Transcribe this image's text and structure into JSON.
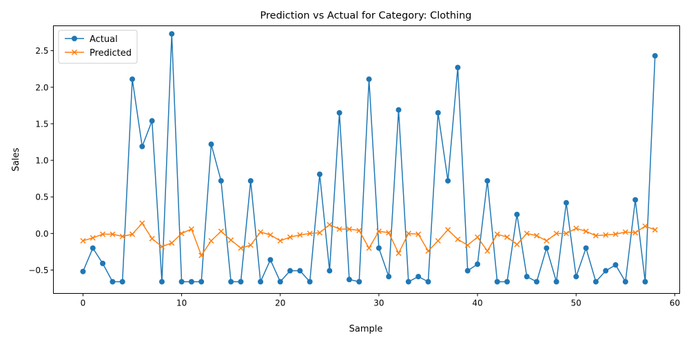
{
  "chart_data": {
    "type": "line",
    "title": "Prediction vs Actual for Category: Clothing",
    "xlabel": "Sample",
    "ylabel": "Sales",
    "xlim": [
      -3,
      60.5
    ],
    "ylim": [
      -0.82,
      2.84
    ],
    "xticks": [
      0,
      10,
      20,
      30,
      40,
      50,
      60
    ],
    "yticks": [
      -0.5,
      0.0,
      0.5,
      1.0,
      1.5,
      2.0,
      2.5
    ],
    "xtick_labels": [
      "0",
      "10",
      "20",
      "30",
      "40",
      "50",
      "60"
    ],
    "ytick_labels": [
      "−0.5",
      "0.0",
      "0.5",
      "1.0",
      "1.5",
      "2.0",
      "2.5"
    ],
    "grid": false,
    "legend_position": "upper-left",
    "x": [
      0,
      1,
      2,
      3,
      4,
      5,
      6,
      7,
      8,
      9,
      10,
      11,
      12,
      13,
      14,
      15,
      16,
      17,
      18,
      19,
      20,
      21,
      22,
      23,
      24,
      25,
      26,
      27,
      28,
      29,
      30,
      31,
      32,
      33,
      34,
      35,
      36,
      37,
      38,
      39,
      40,
      41,
      42,
      43,
      44,
      45,
      46,
      47,
      48,
      49,
      50,
      51,
      52,
      53,
      54,
      55,
      56,
      57,
      58
    ],
    "series": [
      {
        "name": "Actual",
        "color": "#1f77b4",
        "marker": "circle",
        "values": [
          -0.52,
          -0.2,
          -0.41,
          -0.66,
          -0.66,
          2.11,
          1.19,
          1.54,
          -0.66,
          2.73,
          -0.66,
          -0.66,
          -0.66,
          1.22,
          0.72,
          -0.66,
          -0.66,
          0.72,
          -0.66,
          -0.36,
          -0.66,
          -0.51,
          -0.51,
          -0.66,
          0.81,
          -0.51,
          1.65,
          -0.63,
          -0.66,
          2.11,
          -0.2,
          -0.59,
          1.69,
          -0.66,
          -0.59,
          -0.66,
          1.65,
          0.72,
          2.27,
          -0.51,
          -0.42,
          0.72,
          -0.66,
          -0.66,
          0.26,
          -0.59,
          -0.66,
          -0.2,
          -0.66,
          0.42,
          -0.59,
          -0.2,
          -0.66,
          -0.51,
          -0.43,
          -0.66,
          0.46,
          -0.66,
          2.43
        ]
      },
      {
        "name": "Predicted",
        "color": "#ff7f0e",
        "marker": "x",
        "values": [
          -0.1,
          -0.06,
          -0.01,
          -0.01,
          -0.04,
          -0.01,
          0.14,
          -0.07,
          -0.18,
          -0.13,
          0.0,
          0.06,
          -0.3,
          -0.1,
          0.03,
          -0.09,
          -0.2,
          -0.16,
          0.02,
          -0.02,
          -0.1,
          -0.05,
          -0.02,
          0.0,
          0.01,
          0.12,
          0.06,
          0.06,
          0.04,
          -0.2,
          0.03,
          0.01,
          -0.27,
          0.0,
          -0.01,
          -0.24,
          -0.1,
          0.05,
          -0.08,
          -0.16,
          -0.05,
          -0.24,
          -0.01,
          -0.05,
          -0.15,
          0.0,
          -0.03,
          -0.1,
          0.0,
          0.0,
          0.07,
          0.03,
          -0.03,
          -0.02,
          -0.01,
          0.02,
          0.01,
          0.1,
          0.05
        ]
      }
    ]
  }
}
